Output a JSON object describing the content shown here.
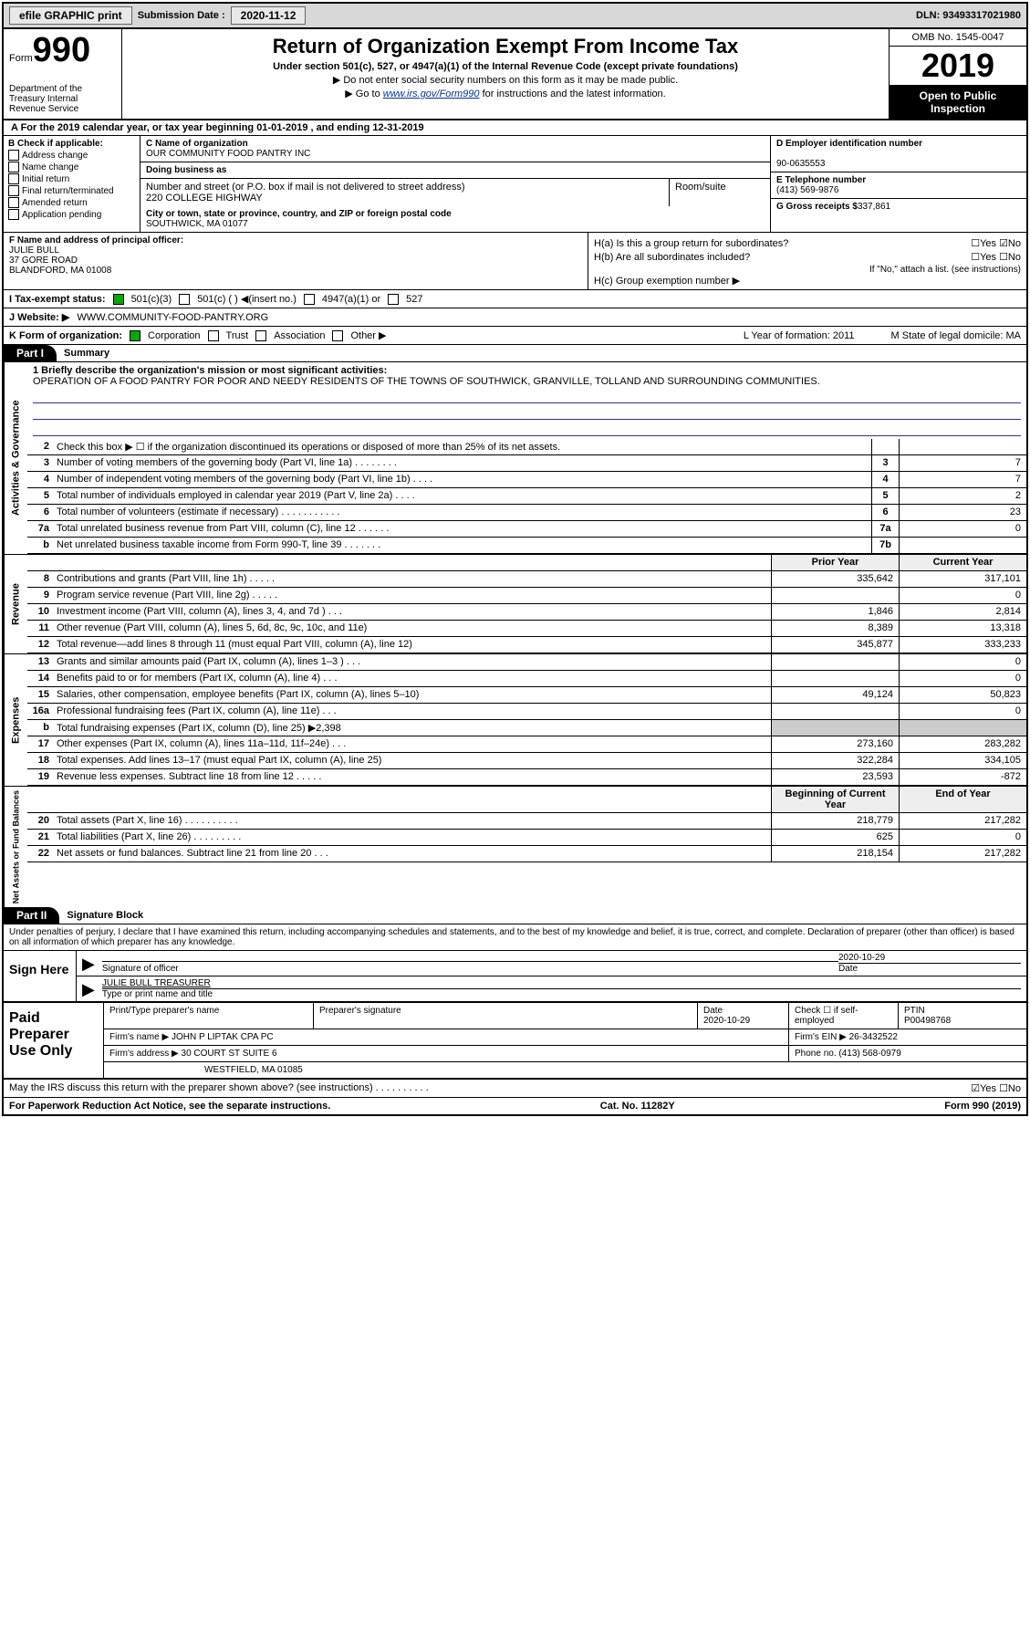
{
  "topbar": {
    "efile": "efile GRAPHIC print",
    "sub_label": "Submission Date :",
    "sub_date": "2020-11-12",
    "dln": "DLN: 93493317021980"
  },
  "header": {
    "form_word": "Form",
    "form_num": "990",
    "dept": "Department of the Treasury\nInternal Revenue Service",
    "title": "Return of Organization Exempt From Income Tax",
    "sub1": "Under section 501(c), 527, or 4947(a)(1) of the Internal Revenue Code (except private foundations)",
    "sub2": "▶ Do not enter social security numbers on this form as it may be made public.",
    "sub3_pre": "▶ Go to ",
    "sub3_link": "www.irs.gov/Form990",
    "sub3_post": " for instructions and the latest information.",
    "omb": "OMB No. 1545-0047",
    "year": "2019",
    "open": "Open to Public Inspection"
  },
  "rowA": "A For the 2019 calendar year, or tax year beginning 01-01-2019  , and ending 12-31-2019",
  "colB": {
    "title": "B Check if applicable:",
    "items": [
      "Address change",
      "Name change",
      "Initial return",
      "Final return/terminated",
      "Amended return",
      "Application pending"
    ]
  },
  "colC": {
    "name_lbl": "C Name of organization",
    "name": "OUR COMMUNITY FOOD PANTRY INC",
    "dba_lbl": "Doing business as",
    "addr_lbl": "Number and street (or P.O. box if mail is not delivered to street address)",
    "room_lbl": "Room/suite",
    "addr": "220 COLLEGE HIGHWAY",
    "city_lbl": "City or town, state or province, country, and ZIP or foreign postal code",
    "city": "SOUTHWICK, MA  01077"
  },
  "colD": {
    "ein_lbl": "D Employer identification number",
    "ein": "90-0635553",
    "tel_lbl": "E Telephone number",
    "tel": "(413) 569-9876",
    "gross_lbl": "G Gross receipts $",
    "gross": "337,861"
  },
  "colF": {
    "lbl": "F Name and address of principal officer:",
    "name": "JULIE BULL",
    "addr1": "37 GORE ROAD",
    "addr2": "BLANDFORD, MA  01008"
  },
  "colH": {
    "ha": "H(a)  Is this a group return for subordinates?",
    "ha_ans": "☐Yes ☑No",
    "hb": "H(b)  Are all subordinates included?",
    "hb_ans": "☐Yes ☐No",
    "hb_note": "If \"No,\" attach a list. (see instructions)",
    "hc": "H(c)  Group exemption number ▶"
  },
  "rowI": {
    "lbl": "I  Tax-exempt status:",
    "opts": [
      "501(c)(3)",
      "501(c) (  ) ◀(insert no.)",
      "4947(a)(1) or",
      "527"
    ]
  },
  "rowJ": {
    "lbl": "J  Website: ▶",
    "val": "WWW.COMMUNITY-FOOD-PANTRY.ORG"
  },
  "rowK": {
    "lbl": "K Form of organization:",
    "opts": [
      "Corporation",
      "Trust",
      "Association",
      "Other ▶"
    ],
    "L": "L Year of formation: 2011",
    "M": "M State of legal domicile: MA"
  },
  "part1": {
    "hdr": "Part I",
    "title": "Summary"
  },
  "mission": {
    "lbl": "1  Briefly describe the organization's mission or most significant activities:",
    "text": "OPERATION OF A FOOD PANTRY FOR POOR AND NEEDY RESIDENTS OF THE TOWNS OF SOUTHWICK, GRANVILLE, TOLLAND AND SURROUNDING COMMUNITIES."
  },
  "sections": {
    "gov": {
      "label": "Activities & Governance",
      "lines": [
        {
          "n": "2",
          "d": "Check this box ▶ ☐ if the organization discontinued its operations or disposed of more than 25% of its net assets.",
          "box": "",
          "v": ""
        },
        {
          "n": "3",
          "d": "Number of voting members of the governing body (Part VI, line 1a)  .  .  .  .  .  .  .  .",
          "box": "3",
          "v": "7"
        },
        {
          "n": "4",
          "d": "Number of independent voting members of the governing body (Part VI, line 1b)  .  .  .  .",
          "box": "4",
          "v": "7"
        },
        {
          "n": "5",
          "d": "Total number of individuals employed in calendar year 2019 (Part V, line 2a)  .  .  .  .",
          "box": "5",
          "v": "2"
        },
        {
          "n": "6",
          "d": "Total number of volunteers (estimate if necessary)  .  .  .  .  .  .  .  .  .  .  .",
          "box": "6",
          "v": "23"
        },
        {
          "n": "7a",
          "d": "Total unrelated business revenue from Part VIII, column (C), line 12  .  .  .  .  .  .",
          "box": "7a",
          "v": "0"
        },
        {
          "n": "b",
          "d": "Net unrelated business taxable income from Form 990-T, line 39  .  .  .  .  .  .  .",
          "box": "7b",
          "v": ""
        }
      ]
    },
    "rev": {
      "label": "Revenue",
      "hdr": {
        "py": "Prior Year",
        "cy": "Current Year"
      },
      "lines": [
        {
          "n": "8",
          "d": "Contributions and grants (Part VIII, line 1h)  .  .  .  .  .",
          "py": "335,642",
          "cy": "317,101"
        },
        {
          "n": "9",
          "d": "Program service revenue (Part VIII, line 2g)  .  .  .  .  .",
          "py": "",
          "cy": "0"
        },
        {
          "n": "10",
          "d": "Investment income (Part VIII, column (A), lines 3, 4, and 7d )  .  .  .",
          "py": "1,846",
          "cy": "2,814"
        },
        {
          "n": "11",
          "d": "Other revenue (Part VIII, column (A), lines 5, 6d, 8c, 9c, 10c, and 11e)",
          "py": "8,389",
          "cy": "13,318"
        },
        {
          "n": "12",
          "d": "Total revenue—add lines 8 through 11 (must equal Part VIII, column (A), line 12)",
          "py": "345,877",
          "cy": "333,233"
        }
      ]
    },
    "exp": {
      "label": "Expenses",
      "lines": [
        {
          "n": "13",
          "d": "Grants and similar amounts paid (Part IX, column (A), lines 1–3 )  .  .  .",
          "py": "",
          "cy": "0"
        },
        {
          "n": "14",
          "d": "Benefits paid to or for members (Part IX, column (A), line 4)  .  .  .",
          "py": "",
          "cy": "0"
        },
        {
          "n": "15",
          "d": "Salaries, other compensation, employee benefits (Part IX, column (A), lines 5–10)",
          "py": "49,124",
          "cy": "50,823"
        },
        {
          "n": "16a",
          "d": "Professional fundraising fees (Part IX, column (A), line 11e)  .  .  .",
          "py": "",
          "cy": "0"
        },
        {
          "n": "b",
          "d": "Total fundraising expenses (Part IX, column (D), line 25) ▶2,398",
          "py": "shade",
          "cy": "shade"
        },
        {
          "n": "17",
          "d": "Other expenses (Part IX, column (A), lines 11a–11d, 11f–24e)  .  .  .",
          "py": "273,160",
          "cy": "283,282"
        },
        {
          "n": "18",
          "d": "Total expenses. Add lines 13–17 (must equal Part IX, column (A), line 25)",
          "py": "322,284",
          "cy": "334,105"
        },
        {
          "n": "19",
          "d": "Revenue less expenses. Subtract line 18 from line 12  .  .  .  .  .",
          "py": "23,593",
          "cy": "-872"
        }
      ]
    },
    "net": {
      "label": "Net Assets or Fund Balances",
      "hdr": {
        "py": "Beginning of Current Year",
        "cy": "End of Year"
      },
      "lines": [
        {
          "n": "20",
          "d": "Total assets (Part X, line 16)  .  .  .  .  .  .  .  .  .  .",
          "py": "218,779",
          "cy": "217,282"
        },
        {
          "n": "21",
          "d": "Total liabilities (Part X, line 26)  .  .  .  .  .  .  .  .  .",
          "py": "625",
          "cy": "0"
        },
        {
          "n": "22",
          "d": "Net assets or fund balances. Subtract line 21 from line 20  .  .  .",
          "py": "218,154",
          "cy": "217,282"
        }
      ]
    }
  },
  "part2": {
    "hdr": "Part II",
    "title": "Signature Block"
  },
  "sig": {
    "intro": "Under penalties of perjury, I declare that I have examined this return, including accompanying schedules and statements, and to the best of my knowledge and belief, it is true, correct, and complete. Declaration of preparer (other than officer) is based on all information of which preparer has any knowledge.",
    "sign_here": "Sign Here",
    "sig_officer": "Signature of officer",
    "date": "2020-10-29",
    "date_lbl": "Date",
    "name": "JULIE BULL  TREASURER",
    "name_lbl": "Type or print name and title"
  },
  "paid": {
    "title": "Paid Preparer Use Only",
    "r1": {
      "c1": "Print/Type preparer's name",
      "c2": "Preparer's signature",
      "c3": "Date\n2020-10-29",
      "c4": "Check ☐ if self-employed",
      "c5": "PTIN\nP00498768"
    },
    "r2": {
      "lbl": "Firm's name   ▶",
      "val": "JOHN P LIPTAK CPA PC",
      "ein_lbl": "Firm's EIN ▶",
      "ein": "26-3432522"
    },
    "r3": {
      "lbl": "Firm's address ▶",
      "val": "30 COURT ST SUITE 6",
      "ph_lbl": "Phone no.",
      "ph": "(413) 568-0979"
    },
    "r4": {
      "val": "WESTFIELD, MA  01085"
    }
  },
  "footer": {
    "discuss": "May the IRS discuss this return with the preparer shown above? (see instructions)  .  .  .  .  .  .  .  .  .  .",
    "yn": "☑Yes  ☐No",
    "paperwork": "For Paperwork Reduction Act Notice, see the separate instructions.",
    "cat": "Cat. No. 11282Y",
    "form": "Form 990 (2019)"
  }
}
